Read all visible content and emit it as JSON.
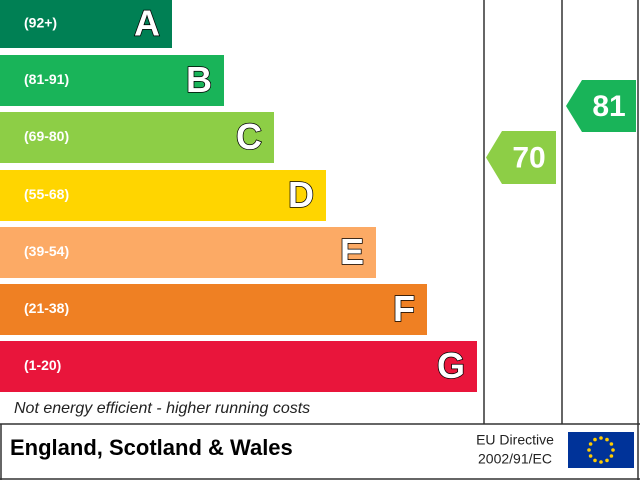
{
  "bands": [
    {
      "range": "(92+)",
      "letter": "A",
      "color": "#008054"
    },
    {
      "range": "(81-91)",
      "letter": "B",
      "color": "#19b459"
    },
    {
      "range": "(69-80)",
      "letter": "C",
      "color": "#8dce46"
    },
    {
      "range": "(55-68)",
      "letter": "D",
      "color": "#ffd500"
    },
    {
      "range": "(39-54)",
      "letter": "E",
      "color": "#fcaa65"
    },
    {
      "range": "(21-38)",
      "letter": "F",
      "color": "#ef8023"
    },
    {
      "range": "(1-20)",
      "letter": "G",
      "color": "#e9153b"
    }
  ],
  "bottom_note": "Not energy efficient - higher running costs",
  "current": {
    "value": 70,
    "color": "#8dce46"
  },
  "potential": {
    "value": 81,
    "color": "#19b459"
  },
  "footer": {
    "region": "England, Scotland & Wales",
    "directive_line1": "EU Directive",
    "directive_line2": "2002/91/EC"
  }
}
